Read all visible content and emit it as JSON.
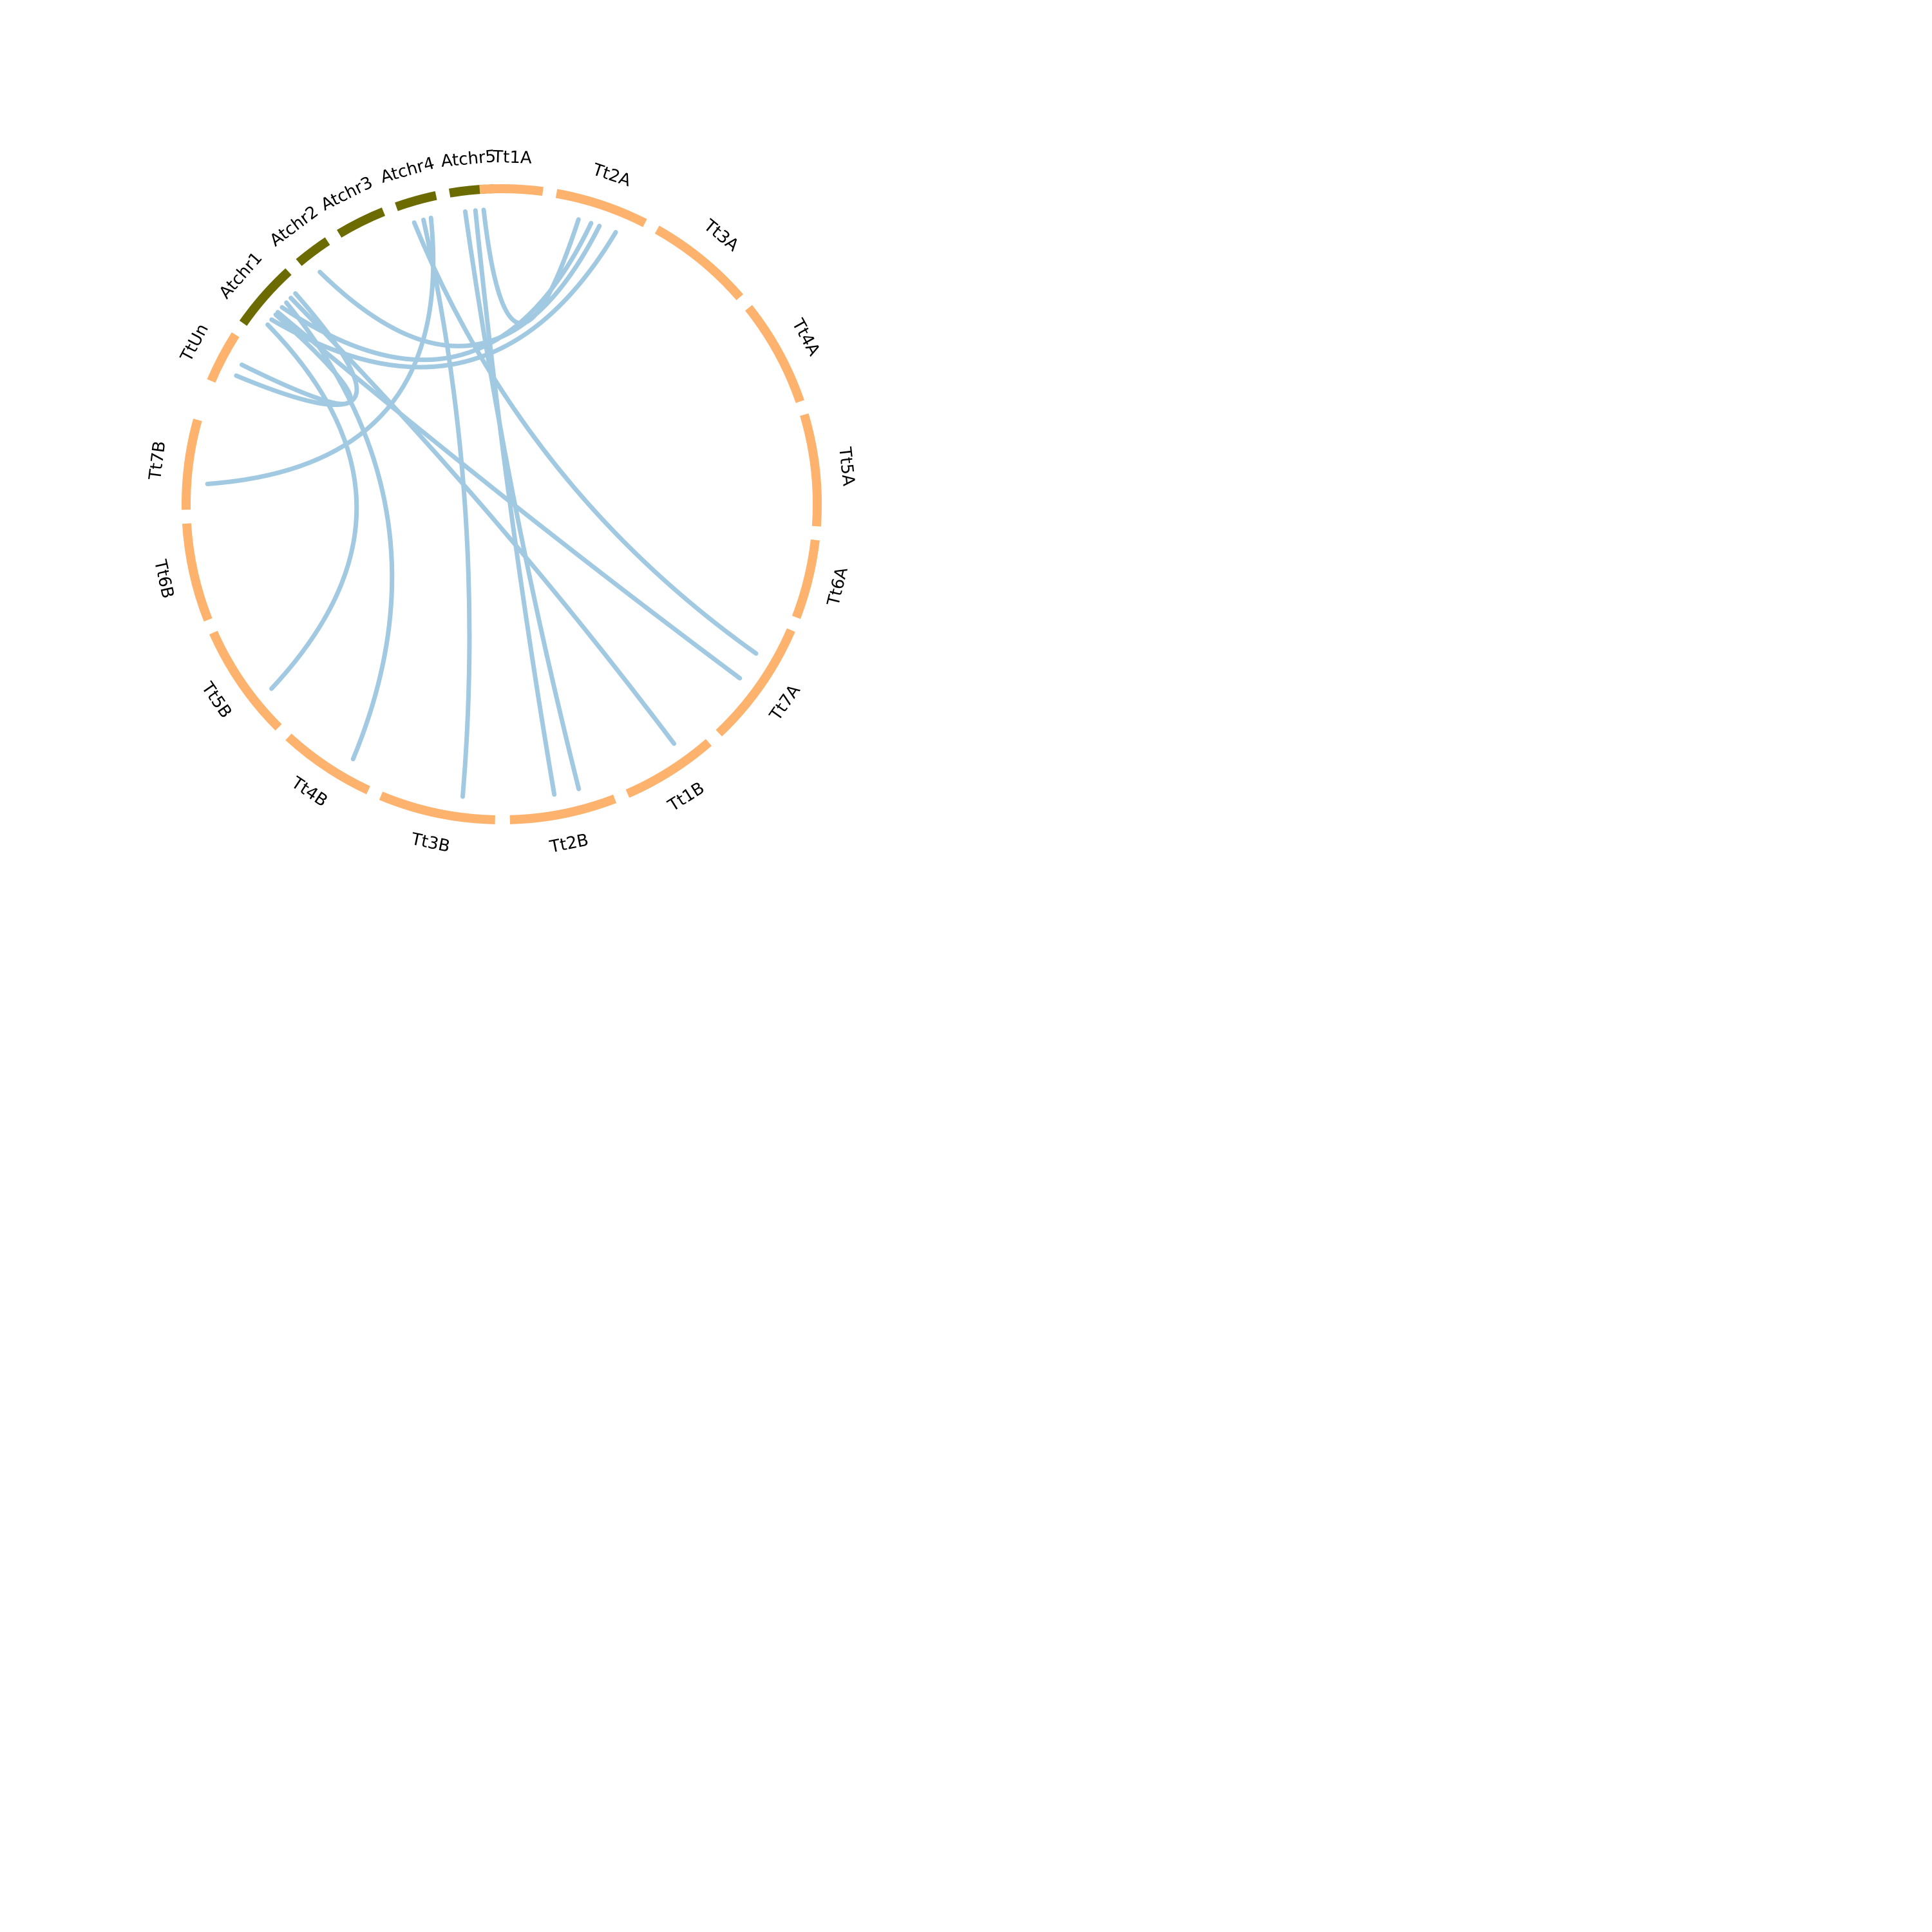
{
  "colors": {
    "arabidopsis": "#6b6b00",
    "triticum": "#fdb26d",
    "link": "#a1c9e1",
    "text": "#000000"
  },
  "segments": [
    {
      "id": "Atchr1",
      "label": "Atchr1",
      "group": "arabidopsis",
      "start": 304.5,
      "end": 321.5
    },
    {
      "id": "Atchr2",
      "label": "Atchr2",
      "group": "arabidopsis",
      "start": 324.5,
      "end": 336.5
    },
    {
      "id": "Atchr3",
      "label": "Atchr3",
      "group": "arabidopsis",
      "start": 339.5,
      "end": 351.5
    },
    {
      "id": "Atchr4",
      "label": "Atchr4",
      "group": "arabidopsis",
      "start": 354.5,
      "end": 365.5
    },
    {
      "id": "Atchr5",
      "label": "Atchr5",
      "group": "arabidopsis",
      "start": 368.5,
      "end": 358.5
    },
    {
      "id": "Tt1A",
      "label": "Tt1A",
      "group": "triticum",
      "start": 1.5,
      "end": 19.0
    },
    {
      "id": "Tt2A",
      "label": "Tt2A",
      "group": "triticum",
      "start": 22.0,
      "end": 45.0
    },
    {
      "id": "Tt3A",
      "label": "Tt3A",
      "group": "triticum",
      "start": 48.0,
      "end": 68.5
    },
    {
      "id": "Tt4A",
      "label": "Tt4A",
      "group": "triticum",
      "start": 71.5,
      "end": 89.5
    },
    {
      "id": "Tt5A",
      "label": "Tt5A",
      "group": "triticum",
      "start": 92.5,
      "end": 111.5
    },
    {
      "id": "Tt6A",
      "label": "Tt6A",
      "group": "triticum",
      "start": 114.5,
      "end": 131.5
    },
    {
      "id": "Tt7A",
      "label": "Tt7A",
      "group": "triticum",
      "start": 134.5,
      "end": 153.0
    },
    {
      "id": "Tt1B",
      "label": "Tt1B",
      "group": "triticum",
      "start": 156.0,
      "end": 174.5
    },
    {
      "id": "Tt2B",
      "label": "Tt2B",
      "group": "triticum",
      "start": 177.5,
      "end": 199.5
    },
    {
      "id": "Tt3B",
      "label": "Tt3B",
      "group": "triticum",
      "start": 202.0,
      "end": 225.0
    },
    {
      "id": "Tt4B",
      "label": "Tt4B",
      "group": "triticum",
      "start": 228.0,
      "end": 241.0
    },
    {
      "id": "Tt5B",
      "label": "Tt5B",
      "group": "triticum",
      "start": 244.0,
      "end": 262.5
    },
    {
      "id": "Tt6B",
      "label": "Tt6B",
      "group": "triticum",
      "start": 265.5,
      "end": 279.5
    },
    {
      "id": "Tt7B",
      "label": "Tt7B",
      "group": "triticum",
      "start": 282.5,
      "end": 294.5
    },
    {
      "id": "TtUn",
      "label": "TtUn",
      "group": "triticum",
      "start": 297.5,
      "end": 301.5
    }
  ],
  "links": [
    {
      "from": "Atchr5",
      "to": "Tt2B"
    },
    {
      "from": "Atchr5",
      "to": "Tt2B"
    },
    {
      "from": "Atchr5",
      "to": "Tt2A"
    },
    {
      "from": "Atchr4",
      "to": "Tt7A"
    },
    {
      "from": "Atchr4",
      "to": "Tt3B"
    },
    {
      "from": "Atchr4",
      "to": "Tt7B"
    },
    {
      "from": "Atchr2",
      "to": "Tt2A"
    },
    {
      "from": "Atchr1",
      "to": "Tt2A"
    },
    {
      "from": "Atchr1",
      "to": "Tt2A"
    },
    {
      "from": "Atchr1",
      "to": "Tt1B"
    },
    {
      "from": "Atchr1",
      "to": "Tt7A"
    },
    {
      "from": "Atchr1",
      "to": "Tt4B"
    },
    {
      "from": "Atchr1",
      "to": "Tt5B"
    },
    {
      "from": "Atchr1",
      "to": "TtUn"
    },
    {
      "from": "Atchr1",
      "to": "TtUn"
    }
  ]
}
